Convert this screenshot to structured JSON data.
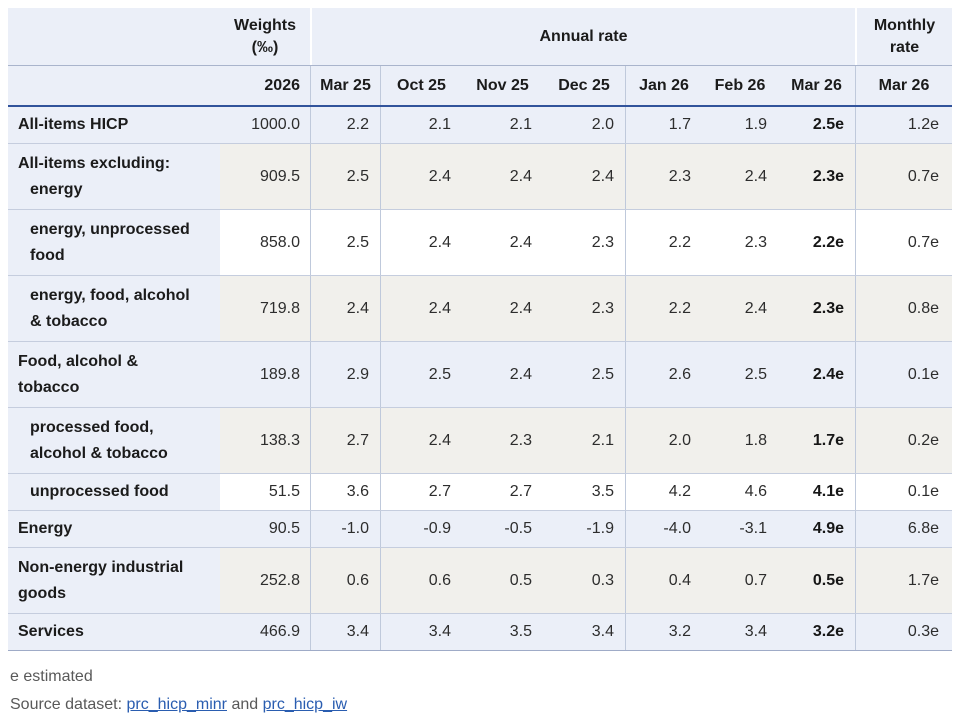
{
  "header": {
    "weights_label": "Weights (‰)",
    "annual_label": "Annual rate",
    "monthly_label": "Monthly rate",
    "year": "2026",
    "months": [
      "Mar 25",
      "Oct 25",
      "Nov 25",
      "Dec 25",
      "Jan 26",
      "Feb 26",
      "Mar 26"
    ],
    "monthly_month": "Mar 26"
  },
  "rows": [
    {
      "label_lines": [
        "All-items HICP"
      ],
      "indent": "main",
      "bg": "blue",
      "weight": "1000.0",
      "annual": [
        "2.2",
        "2.1",
        "2.1",
        "2.0",
        "1.7",
        "1.9",
        "2.5e"
      ],
      "monthly": "1.2e"
    },
    {
      "label_lines": [
        "All-items excluding:",
        "energy"
      ],
      "indent": "hang",
      "bg": "beige",
      "weight": "909.5",
      "annual": [
        "2.5",
        "2.4",
        "2.4",
        "2.4",
        "2.3",
        "2.4",
        "2.3e"
      ],
      "monthly": "0.7e"
    },
    {
      "label_lines": [
        "energy, unprocessed",
        "food"
      ],
      "indent": "sub",
      "bg": "white",
      "weight": "858.0",
      "annual": [
        "2.5",
        "2.4",
        "2.4",
        "2.3",
        "2.2",
        "2.3",
        "2.2e"
      ],
      "monthly": "0.7e"
    },
    {
      "label_lines": [
        "energy, food, alcohol",
        "& tobacco"
      ],
      "indent": "sub",
      "bg": "beige",
      "weight": "719.8",
      "annual": [
        "2.4",
        "2.4",
        "2.4",
        "2.3",
        "2.2",
        "2.4",
        "2.3e"
      ],
      "monthly": "0.8e"
    },
    {
      "label_lines": [
        "Food, alcohol &",
        "tobacco"
      ],
      "indent": "main",
      "bg": "blue",
      "weight": "189.8",
      "annual": [
        "2.9",
        "2.5",
        "2.4",
        "2.5",
        "2.6",
        "2.5",
        "2.4e"
      ],
      "monthly": "0.1e"
    },
    {
      "label_lines": [
        "processed food,",
        "alcohol & tobacco"
      ],
      "indent": "sub",
      "bg": "beige",
      "weight": "138.3",
      "annual": [
        "2.7",
        "2.4",
        "2.3",
        "2.1",
        "2.0",
        "1.8",
        "1.7e"
      ],
      "monthly": "0.2e"
    },
    {
      "label_lines": [
        "unprocessed food"
      ],
      "indent": "sub",
      "bg": "white",
      "weight": "51.5",
      "annual": [
        "3.6",
        "2.7",
        "2.7",
        "3.5",
        "4.2",
        "4.6",
        "4.1e"
      ],
      "monthly": "0.1e"
    },
    {
      "label_lines": [
        "Energy"
      ],
      "indent": "main",
      "bg": "blue",
      "weight": "90.5",
      "annual": [
        "-1.0",
        "-0.9",
        "-0.5",
        "-1.9",
        "-4.0",
        "-3.1",
        "4.9e"
      ],
      "monthly": "6.8e"
    },
    {
      "label_lines": [
        "Non-energy industrial",
        "goods"
      ],
      "indent": "main",
      "bg": "beige",
      "weight": "252.8",
      "annual": [
        "0.6",
        "0.6",
        "0.5",
        "0.3",
        "0.4",
        "0.7",
        "0.5e"
      ],
      "monthly": "1.7e"
    },
    {
      "label_lines": [
        "Services"
      ],
      "indent": "main",
      "bg": "blue",
      "weight": "466.9",
      "annual": [
        "3.4",
        "3.4",
        "3.5",
        "3.4",
        "3.2",
        "3.4",
        "3.2e"
      ],
      "monthly": "0.3e"
    }
  ],
  "footer": {
    "estimated_note": "e estimated",
    "source_prefix": "Source dataset: ",
    "link1": "prc_hicp_minr",
    "source_and": " and ",
    "link2": "prc_hicp_iw"
  },
  "colors": {
    "header_bg": "#ebeff8",
    "row_blue": "#ebeff8",
    "row_beige": "#f1f0ec",
    "row_white": "#ffffff",
    "divider_dark_blue": "#31539b",
    "row_line": "#c5cdde",
    "bottom_line": "#9fabc7",
    "link_blue": "#2a5db0"
  }
}
